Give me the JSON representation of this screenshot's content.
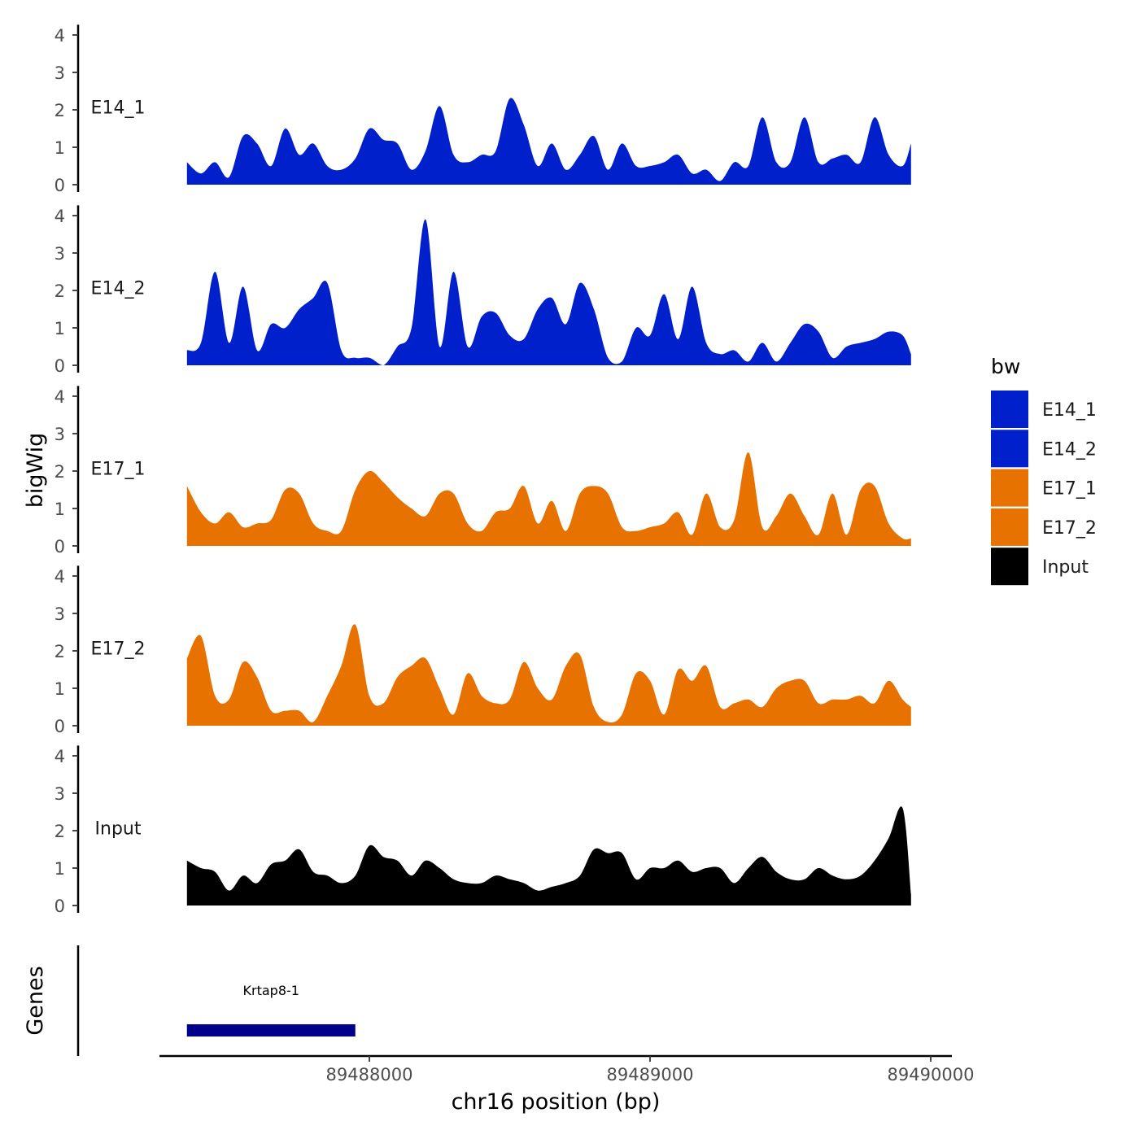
{
  "chart_data": {
    "type": "area",
    "y_axis_title": "bigWig",
    "genes_axis_title": "Genes",
    "x_axis_title": "chr16 position (bp)",
    "x_range": [
      89487350,
      89489930
    ],
    "x_ticks": [
      89488000,
      89489000,
      89490000
    ],
    "x_tick_labels": [
      "89488000",
      "89489000",
      "89490000"
    ],
    "y_range": [
      0,
      4
    ],
    "y_ticks": [
      0,
      1,
      2,
      3,
      4
    ],
    "y_tick_labels": [
      "0",
      "1",
      "2",
      "3",
      "4"
    ],
    "legend": {
      "title": "bw",
      "entries": [
        {
          "label": "E14_1",
          "color": "#0020CC"
        },
        {
          "label": "E14_2",
          "color": "#0020CC"
        },
        {
          "label": "E17_1",
          "color": "#E87200"
        },
        {
          "label": "E17_2",
          "color": "#E87200"
        },
        {
          "label": "Input",
          "color": "#000000"
        }
      ]
    },
    "x": [
      89487350,
      89487400,
      89487450,
      89487500,
      89487550,
      89487600,
      89487650,
      89487700,
      89487750,
      89487800,
      89487850,
      89487900,
      89487950,
      89488000,
      89488050,
      89488100,
      89488150,
      89488200,
      89488250,
      89488300,
      89488350,
      89488400,
      89488450,
      89488500,
      89488550,
      89488600,
      89488650,
      89488700,
      89488750,
      89488800,
      89488850,
      89488900,
      89488950,
      89489000,
      89489050,
      89489100,
      89489150,
      89489200,
      89489250,
      89489300,
      89489350,
      89489400,
      89489450,
      89489500,
      89489550,
      89489600,
      89489650,
      89489700,
      89489750,
      89489800,
      89489850,
      89489900,
      89489930
    ],
    "series": [
      {
        "name": "E14_1",
        "color": "#0020CC",
        "label": "E14_1",
        "values": [
          0.6,
          0.3,
          0.6,
          0.2,
          1.3,
          1.1,
          0.5,
          1.5,
          0.8,
          1.1,
          0.5,
          0.4,
          0.7,
          1.5,
          1.2,
          1.1,
          0.4,
          0.9,
          2.1,
          0.8,
          0.6,
          0.8,
          0.9,
          2.3,
          1.6,
          0.5,
          1.1,
          0.4,
          0.8,
          1.3,
          0.4,
          1.1,
          0.5,
          0.5,
          0.6,
          0.8,
          0.3,
          0.4,
          0.1,
          0.6,
          0.5,
          1.8,
          0.6,
          0.6,
          1.8,
          0.6,
          0.7,
          0.8,
          0.6,
          1.8,
          0.8,
          0.5,
          1.1
        ]
      },
      {
        "name": "E14_2",
        "color": "#0020CC",
        "label": "E14_2",
        "values": [
          0.4,
          0.6,
          2.5,
          0.6,
          2.1,
          0.4,
          1.1,
          1.0,
          1.5,
          1.8,
          2.2,
          0.4,
          0.2,
          0.2,
          0,
          0.5,
          1.0,
          3.9,
          0.5,
          2.5,
          0.5,
          1.3,
          1.4,
          0.8,
          0.7,
          1.5,
          1.8,
          1.1,
          2.2,
          1.5,
          0.2,
          0.1,
          1.0,
          0.8,
          1.9,
          0.7,
          2.1,
          0.6,
          0.3,
          0.4,
          0.1,
          0.6,
          0.1,
          0.6,
          1.1,
          0.9,
          0.2,
          0.5,
          0.6,
          0.7,
          0.9,
          0.8,
          0.3
        ]
      },
      {
        "name": "E17_1",
        "color": "#E87200",
        "label": "E17_1",
        "values": [
          1.6,
          0.9,
          0.6,
          0.9,
          0.5,
          0.6,
          0.7,
          1.5,
          1.4,
          0.6,
          0.4,
          0.4,
          1.5,
          2.0,
          1.7,
          1.3,
          1.0,
          0.8,
          1.4,
          1.4,
          0.6,
          0.4,
          0.9,
          1.0,
          1.6,
          0.6,
          1.2,
          0.4,
          1.4,
          1.6,
          1.4,
          0.5,
          0.4,
          0.5,
          0.6,
          0.9,
          0.3,
          1.4,
          0.5,
          0.7,
          2.5,
          0.5,
          0.8,
          1.4,
          0.8,
          0.3,
          1.4,
          0.3,
          1.5,
          1.6,
          0.6,
          0.2,
          0.2
        ]
      },
      {
        "name": "E17_2",
        "color": "#E87200",
        "label": "E17_2",
        "values": [
          1.8,
          2.4,
          0.8,
          0.7,
          1.7,
          1.3,
          0.4,
          0.4,
          0.4,
          0.1,
          0.8,
          1.6,
          2.7,
          0.8,
          0.6,
          1.3,
          1.6,
          1.8,
          1.0,
          0.3,
          1.4,
          0.8,
          0.6,
          0.7,
          1.7,
          1.0,
          0.7,
          1.6,
          1.9,
          0.5,
          0.1,
          0.3,
          1.4,
          1.2,
          0.3,
          1.5,
          1.2,
          1.6,
          0.5,
          0.6,
          0.7,
          0.5,
          1.0,
          1.2,
          1.2,
          0.6,
          0.7,
          0.7,
          0.8,
          0.6,
          1.2,
          0.7,
          0.5
        ]
      },
      {
        "name": "Input",
        "color": "#000000",
        "label": "Input",
        "values": [
          1.2,
          1.0,
          0.9,
          0.4,
          0.8,
          0.6,
          1.1,
          1.2,
          1.5,
          0.9,
          0.8,
          0.6,
          0.8,
          1.6,
          1.3,
          1.2,
          0.8,
          1.2,
          1.0,
          0.7,
          0.6,
          0.6,
          0.8,
          0.7,
          0.6,
          0.4,
          0.5,
          0.6,
          0.8,
          1.5,
          1.4,
          1.4,
          0.7,
          1.0,
          1.0,
          1.2,
          0.9,
          1.0,
          1.0,
          0.6,
          1.0,
          1.3,
          0.9,
          0.7,
          0.7,
          1.0,
          0.8,
          0.7,
          0.8,
          1.2,
          1.8,
          2.6,
          0.3
        ]
      }
    ],
    "genes": [
      {
        "name": "Krtap8-1",
        "start": 89487350,
        "end": 89487950,
        "color": "#00008B"
      }
    ]
  }
}
